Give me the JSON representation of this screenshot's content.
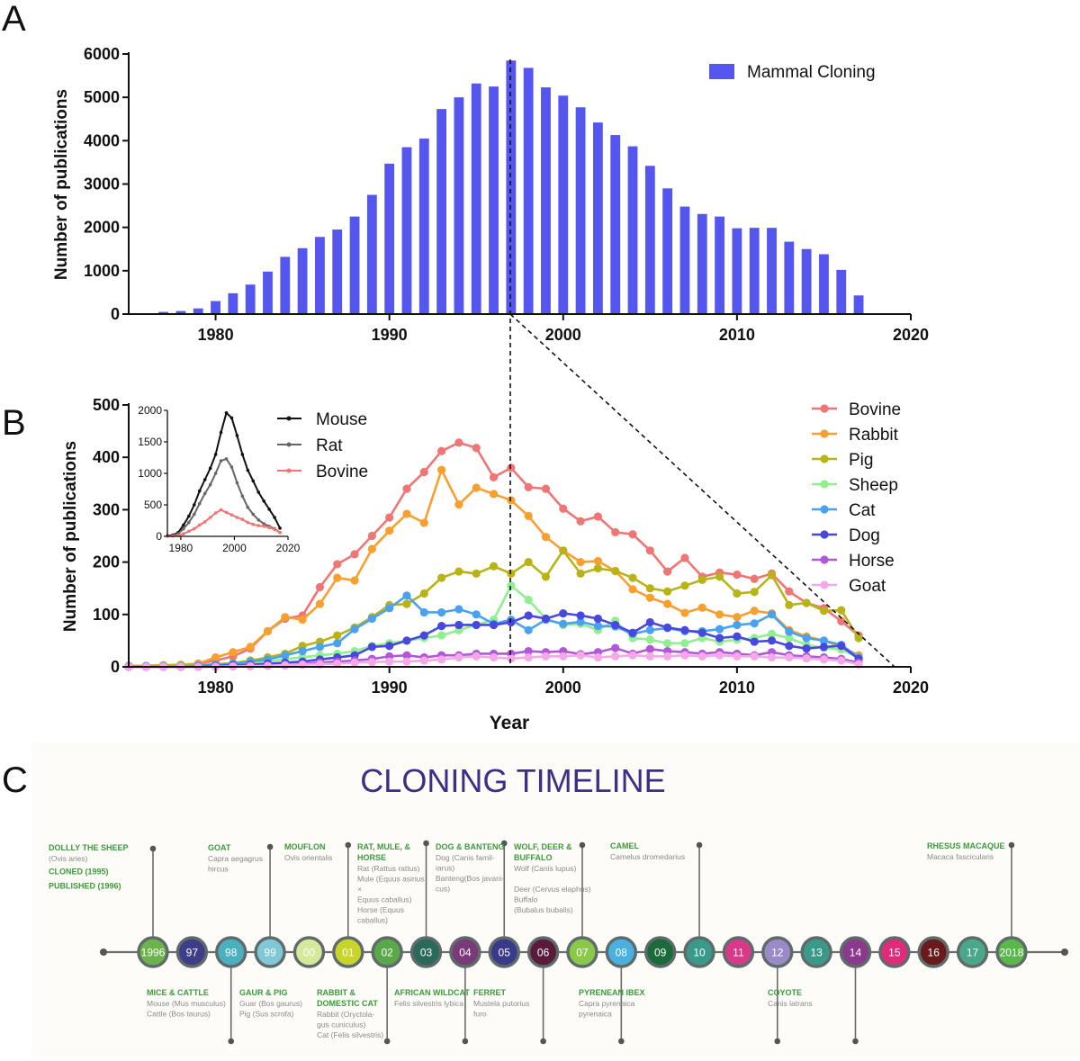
{
  "panels": {
    "a": "A",
    "b": "B",
    "c": "C"
  },
  "chart_data": [
    {
      "type": "bar",
      "panel": "A",
      "ylabel": "Number of publications",
      "xlabel": "",
      "xlim": [
        1975,
        2020
      ],
      "ylim": [
        0,
        6000
      ],
      "xticks": [
        1980,
        1990,
        2000,
        2010,
        2020
      ],
      "yticks": [
        0,
        1000,
        2000,
        3000,
        4000,
        5000,
        6000
      ],
      "legend": "Mammal Cloning",
      "bar_color": "#5555f0",
      "x": [
        1977,
        1978,
        1979,
        1980,
        1981,
        1982,
        1983,
        1984,
        1985,
        1986,
        1987,
        1988,
        1989,
        1990,
        1991,
        1992,
        1993,
        1994,
        1995,
        1996,
        1997,
        1998,
        1999,
        2000,
        2001,
        2002,
        2003,
        2004,
        2005,
        2006,
        2007,
        2008,
        2009,
        2010,
        2011,
        2012,
        2013,
        2014,
        2015,
        2016,
        2017
      ],
      "values": [
        50,
        70,
        130,
        300,
        480,
        680,
        980,
        1320,
        1520,
        1780,
        1950,
        2250,
        2750,
        3470,
        3850,
        4050,
        4730,
        5000,
        5320,
        5250,
        5850,
        5680,
        5230,
        5040,
        4770,
        4420,
        4130,
        3870,
        3420,
        2900,
        2480,
        2310,
        2250,
        1980,
        1990,
        1990,
        1670,
        1500,
        1380,
        1020,
        430
      ]
    },
    {
      "type": "line",
      "panel": "B",
      "xlabel": "Year",
      "ylabel": "Number of publications",
      "xlim": [
        1975,
        2020
      ],
      "ylim": [
        0,
        500
      ],
      "xticks": [
        1980,
        1990,
        2000,
        2010,
        2020
      ],
      "yticks": [
        0,
        100,
        200,
        300,
        400,
        500
      ],
      "x": [
        1975,
        1976,
        1977,
        1978,
        1979,
        1980,
        1981,
        1982,
        1983,
        1984,
        1985,
        1986,
        1987,
        1988,
        1989,
        1990,
        1991,
        1992,
        1993,
        1994,
        1995,
        1996,
        1997,
        1998,
        1999,
        2000,
        2001,
        2002,
        2003,
        2004,
        2005,
        2006,
        2007,
        2008,
        2009,
        2010,
        2011,
        2012,
        2013,
        2014,
        2015,
        2016,
        2017
      ],
      "series": [
        {
          "name": "Bovine",
          "color": "#f07575",
          "values": [
            2,
            2,
            3,
            4,
            6,
            12,
            20,
            35,
            68,
            92,
            98,
            152,
            196,
            215,
            250,
            285,
            340,
            372,
            412,
            428,
            418,
            362,
            380,
            343,
            340,
            302,
            278,
            287,
            257,
            253,
            222,
            182,
            208,
            172,
            180,
            176,
            168,
            178,
            144,
            122,
            112,
            87,
            60
          ]
        },
        {
          "name": "Rabbit",
          "color": "#f7a030",
          "values": [
            2,
            2,
            3,
            4,
            6,
            18,
            28,
            38,
            68,
            95,
            90,
            120,
            170,
            165,
            225,
            260,
            292,
            275,
            376,
            310,
            342,
            330,
            318,
            288,
            248,
            222,
            200,
            202,
            183,
            148,
            132,
            120,
            103,
            113,
            100,
            95,
            107,
            102,
            70,
            58,
            50,
            38,
            22
          ]
        },
        {
          "name": "Pig",
          "color": "#b8b418",
          "values": [
            1,
            1,
            2,
            2,
            3,
            5,
            7,
            12,
            18,
            25,
            40,
            48,
            60,
            75,
            95,
            118,
            120,
            140,
            170,
            182,
            178,
            192,
            178,
            200,
            172,
            222,
            178,
            188,
            183,
            170,
            150,
            144,
            155,
            166,
            172,
            140,
            143,
            175,
            118,
            122,
            107,
            108,
            55
          ]
        },
        {
          "name": "Sheep",
          "color": "#90f090",
          "values": [
            1,
            1,
            1,
            1,
            2,
            3,
            4,
            6,
            10,
            15,
            18,
            22,
            25,
            30,
            40,
            45,
            50,
            55,
            60,
            70,
            80,
            90,
            155,
            128,
            92,
            80,
            82,
            70,
            88,
            55,
            52,
            45,
            45,
            55,
            48,
            52,
            55,
            63,
            55,
            42,
            36,
            33,
            18
          ]
        },
        {
          "name": "Cat",
          "color": "#4aa2ee",
          "values": [
            1,
            1,
            1,
            1,
            2,
            4,
            6,
            10,
            14,
            22,
            30,
            38,
            45,
            72,
            92,
            112,
            136,
            104,
            104,
            110,
            100,
            82,
            90,
            70,
            90,
            82,
            86,
            78,
            77,
            63,
            70,
            74,
            68,
            68,
            72,
            80,
            83,
            100,
            67,
            55,
            50,
            42,
            18
          ]
        },
        {
          "name": "Dog",
          "color": "#4848e0",
          "values": [
            0,
            0,
            0,
            0,
            1,
            2,
            3,
            4,
            6,
            8,
            10,
            14,
            18,
            22,
            38,
            40,
            50,
            60,
            78,
            80,
            80,
            80,
            85,
            98,
            92,
            102,
            98,
            92,
            80,
            65,
            85,
            75,
            70,
            65,
            55,
            58,
            48,
            50,
            40,
            35,
            38,
            40,
            15
          ]
        },
        {
          "name": "Horse",
          "color": "#b058d8",
          "values": [
            0,
            0,
            0,
            0,
            0,
            1,
            1,
            2,
            2,
            3,
            5,
            8,
            10,
            12,
            15,
            20,
            22,
            18,
            22,
            22,
            25,
            25,
            25,
            30,
            28,
            30,
            24,
            28,
            36,
            25,
            34,
            30,
            28,
            25,
            28,
            25,
            22,
            28,
            22,
            20,
            18,
            15,
            8
          ]
        },
        {
          "name": "Goat",
          "color": "#f5a8e8",
          "values": [
            0,
            0,
            0,
            0,
            0,
            0,
            1,
            1,
            2,
            3,
            4,
            5,
            6,
            8,
            9,
            10,
            10,
            12,
            14,
            18,
            20,
            18,
            16,
            18,
            20,
            20,
            22,
            18,
            20,
            22,
            20,
            20,
            22,
            20,
            22,
            20,
            20,
            18,
            18,
            16,
            14,
            12,
            5
          ]
        }
      ],
      "inset": {
        "type": "line",
        "xlim": [
          1975,
          2020
        ],
        "ylim": [
          0,
          2000
        ],
        "xticks": [
          1980,
          2000,
          2020
        ],
        "yticks": [
          0,
          500,
          1000,
          1500,
          2000
        ],
        "x": [
          1975,
          1977,
          1979,
          1981,
          1983,
          1985,
          1987,
          1989,
          1991,
          1993,
          1995,
          1997,
          1999,
          2001,
          2003,
          2005,
          2007,
          2009,
          2011,
          2013,
          2015,
          2017
        ],
        "series": [
          {
            "name": "Mouse",
            "color": "#111111",
            "values": [
              10,
              20,
              60,
              180,
              320,
              500,
              720,
              900,
              1080,
              1300,
              1650,
              1960,
              1880,
              1600,
              1300,
              1050,
              880,
              700,
              560,
              430,
              300,
              130
            ]
          },
          {
            "name": "Rat",
            "color": "#666666",
            "values": [
              5,
              10,
              40,
              120,
              220,
              350,
              520,
              680,
              820,
              1000,
              1200,
              1230,
              1100,
              850,
              640,
              460,
              350,
              260,
              200,
              160,
              120,
              60
            ]
          },
          {
            "name": "Bovine",
            "color": "#f07575",
            "values": [
              2,
              5,
              15,
              40,
              80,
              120,
              180,
              230,
              300,
              370,
              420,
              380,
              340,
              300,
              270,
              220,
              190,
              170,
              160,
              140,
              110,
              60
            ]
          }
        ]
      }
    }
  ],
  "timeline": {
    "title": "CLONING TIMELINE",
    "circles": [
      {
        "label": "1996",
        "color": "#6bb34a"
      },
      {
        "label": "97",
        "color": "#3d3d8a"
      },
      {
        "label": "98",
        "color": "#4ab0c0"
      },
      {
        "label": "99",
        "color": "#7ec8d8"
      },
      {
        "label": "00",
        "color": "#d6e89a"
      },
      {
        "label": "01",
        "color": "#c8d42a"
      },
      {
        "label": "02",
        "color": "#5aa84a"
      },
      {
        "label": "03",
        "color": "#2a6a5a"
      },
      {
        "label": "04",
        "color": "#7a3a7a"
      },
      {
        "label": "05",
        "color": "#3a3a8a"
      },
      {
        "label": "06",
        "color": "#5a1a3a"
      },
      {
        "label": "07",
        "color": "#8ac84a"
      },
      {
        "label": "08",
        "color": "#4ab0e0"
      },
      {
        "label": "09",
        "color": "#1a6a3a"
      },
      {
        "label": "10",
        "color": "#3a9a8a"
      },
      {
        "label": "11",
        "color": "#d83a8a"
      },
      {
        "label": "12",
        "color": "#9a8ac8"
      },
      {
        "label": "13",
        "color": "#3a9a8a"
      },
      {
        "label": "14",
        "color": "#8a3a8a"
      },
      {
        "label": "15",
        "color": "#e02a7a"
      },
      {
        "label": "16",
        "color": "#6a1a1a"
      },
      {
        "label": "17",
        "color": "#4aa88a"
      },
      {
        "label": "2018",
        "color": "#5ab84a"
      }
    ],
    "events_top": [
      {
        "title_lines": [
          "DOLLLY THE SHEEP"
        ],
        "detail_lines": [
          "(Ovis aries)"
        ],
        "extra_lines": [
          "CLONED (1995)",
          "PUBLISHED (1996)"
        ]
      },
      {
        "title_lines": [
          "GOAT"
        ],
        "detail_lines": [
          "Capra aegagrus",
          "hircus"
        ]
      },
      {
        "title_lines": [
          "MOUFLON"
        ],
        "detail_lines": [
          "Ovis orientalis"
        ]
      },
      {
        "title_lines": [
          "RAT, MULE, &",
          "HORSE"
        ],
        "detail_lines": [
          "Rat (Rattus rattus)",
          "Mule (Equus asinus",
          "×",
          "Equus caballus)",
          "Horse (Equus",
          "caballus)"
        ]
      },
      {
        "title_lines": [
          "DOG & BANTENG"
        ],
        "detail_lines": [
          "Dog (Canis famil-",
          "iarus)",
          "Banteng(Bos javani-",
          "cus)"
        ]
      },
      {
        "title_lines": [
          "WOLF, DEER &",
          "BUFFALO"
        ],
        "detail_lines": [
          "Wolf (Canis lupus)",
          "",
          "Deer (Cervus elaphus)",
          "Buffalo",
          "(Bubalus bubalis)"
        ]
      },
      {
        "title_lines": [
          "CAMEL"
        ],
        "detail_lines": [
          "Camelus dromedarius"
        ]
      },
      {
        "title_lines": [
          "RHESUS MACAQUE"
        ],
        "detail_lines": [
          "Macaca fascicularis"
        ]
      }
    ],
    "events_bottom": [
      {
        "title_lines": [
          "MICE & CATTLE"
        ],
        "detail_lines": [
          "Mouse (Mus musculus)",
          "Cattle (Bos taurus)"
        ]
      },
      {
        "title_lines": [
          "GAUR & PIG"
        ],
        "detail_lines": [
          "Guar (Bos gaurus)",
          "Pig (Sus  scrofa)"
        ]
      },
      {
        "title_lines": [
          "RABBIT &",
          "DOMESTIC CAT"
        ],
        "detail_lines": [
          "Rabbit (Oryctola-",
          "gus cuniculus)",
          "Cat (Felis silvestris)"
        ]
      },
      {
        "title_lines": [
          "AFRICAN WILDCAT"
        ],
        "detail_lines": [
          "Felis silvestris lybica"
        ]
      },
      {
        "title_lines": [
          "FERRET"
        ],
        "detail_lines": [
          "Mustela putorius",
          "furo"
        ]
      },
      {
        "title_lines": [
          "PYRENEAN IBEX"
        ],
        "detail_lines": [
          "Capra pyrenaica",
          "pyrenaica"
        ]
      },
      {
        "title_lines": [
          "COYOTE"
        ],
        "detail_lines": [
          "Canis latrans"
        ]
      }
    ]
  }
}
